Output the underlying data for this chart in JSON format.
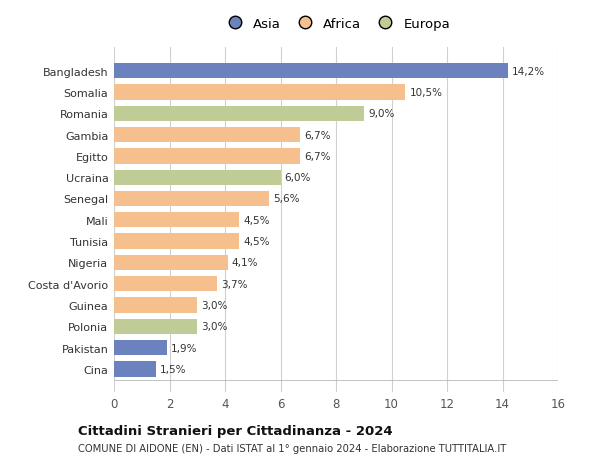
{
  "categories": [
    "Bangladesh",
    "Somalia",
    "Romania",
    "Gambia",
    "Egitto",
    "Ucraina",
    "Senegal",
    "Mali",
    "Tunisia",
    "Nigeria",
    "Costa d'Avorio",
    "Guinea",
    "Polonia",
    "Pakistan",
    "Cina"
  ],
  "values": [
    14.2,
    10.5,
    9.0,
    6.7,
    6.7,
    6.0,
    5.6,
    4.5,
    4.5,
    4.1,
    3.7,
    3.0,
    3.0,
    1.9,
    1.5
  ],
  "labels": [
    "14,2%",
    "10,5%",
    "9,0%",
    "6,7%",
    "6,7%",
    "6,0%",
    "5,6%",
    "4,5%",
    "4,5%",
    "4,1%",
    "3,7%",
    "3,0%",
    "3,0%",
    "1,9%",
    "1,5%"
  ],
  "continents": [
    "Asia",
    "Africa",
    "Europa",
    "Africa",
    "Africa",
    "Europa",
    "Africa",
    "Africa",
    "Africa",
    "Africa",
    "Africa",
    "Africa",
    "Europa",
    "Asia",
    "Asia"
  ],
  "colors": {
    "Asia": "#6b82be",
    "Africa": "#f5bf8e",
    "Europa": "#c0cc96"
  },
  "legend_order": [
    "Asia",
    "Africa",
    "Europa"
  ],
  "xlim": [
    0,
    16
  ],
  "xticks": [
    0,
    2,
    4,
    6,
    8,
    10,
    12,
    14,
    16
  ],
  "title": "Cittadini Stranieri per Cittadinanza - 2024",
  "subtitle": "COMUNE DI AIDONE (EN) - Dati ISTAT al 1° gennaio 2024 - Elaborazione TUTTITALIA.IT",
  "background_color": "#ffffff",
  "grid_color": "#d0d0d0"
}
